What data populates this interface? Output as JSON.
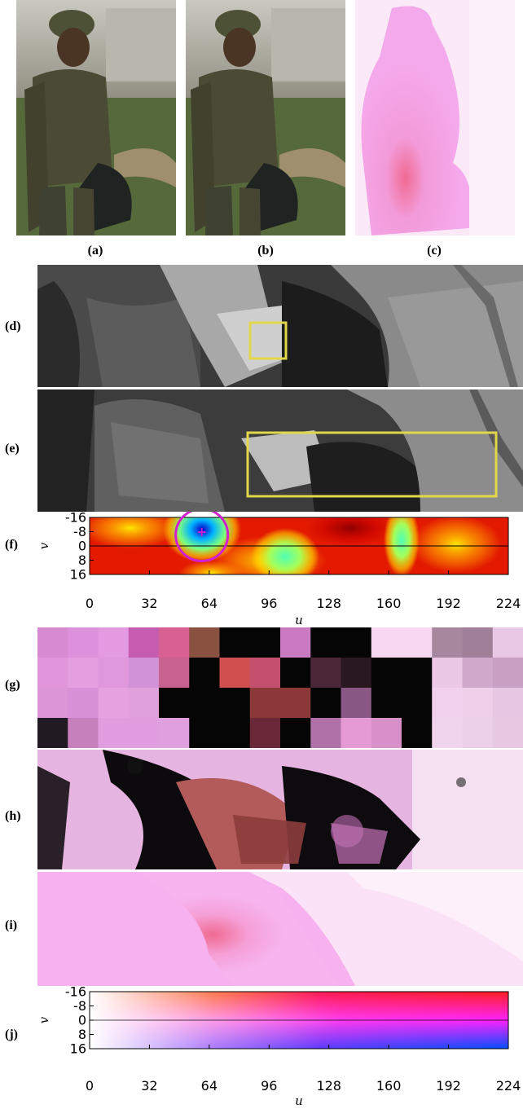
{
  "subfigure_labels": {
    "a": "(a)",
    "b": "(b)",
    "c": "(c)",
    "d": "(d)",
    "e": "(e)",
    "f": "(f)",
    "g": "(g)",
    "h": "(h)",
    "i": "(i)",
    "j": "(j)"
  },
  "cost_volume_plot": {
    "xlabel": "u",
    "ylabel": "v",
    "x_ticks": [
      "0",
      "32",
      "64",
      "96",
      "128",
      "160",
      "192",
      "224"
    ],
    "y_ticks": [
      "-16",
      "-8",
      "0",
      "8",
      "16"
    ],
    "x_range": [
      0,
      224
    ],
    "y_range": [
      -16,
      16
    ],
    "best_match": {
      "u": 60,
      "v": -8
    }
  },
  "colorwheel_plot": {
    "xlabel": "u",
    "ylabel": "v",
    "x_ticks": [
      "0",
      "32",
      "64",
      "96",
      "128",
      "160",
      "192",
      "224"
    ],
    "y_ticks": [
      "-16",
      "-8",
      "0",
      "8",
      "16"
    ],
    "x_range": [
      0,
      224
    ],
    "y_range": [
      -16,
      16
    ]
  },
  "colors": {
    "highlight_box": "#e0d84a",
    "best_match_marker": "#d020d0",
    "flow_pink": "#f2a6e6"
  }
}
